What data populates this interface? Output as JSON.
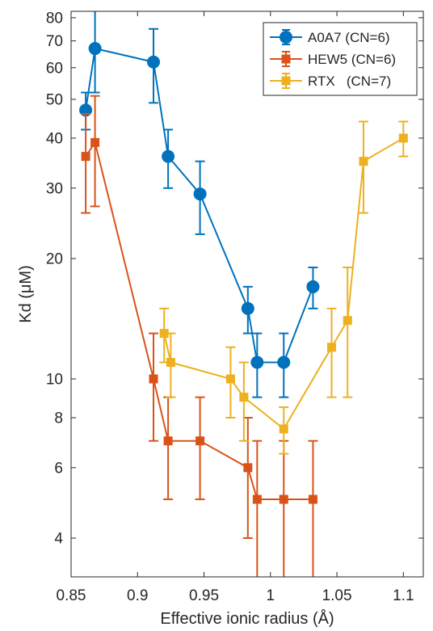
{
  "chart_data": {
    "type": "line",
    "xlabel": "Effective ionic radius (Å)",
    "ylabel": "Kd (μM)",
    "xlim": [
      0.85,
      1.115
    ],
    "ylim": [
      3.2,
      83
    ],
    "yscale": "log",
    "grid": false,
    "legend_position": "top-right",
    "x_ticks": [
      0.85,
      0.9,
      0.95,
      1.0,
      1.05,
      1.1
    ],
    "x_tick_labels": [
      "0.85",
      "0.9",
      "0.95",
      "1",
      "1.05",
      "1.1"
    ],
    "y_ticks": [
      4,
      6,
      8,
      10,
      20,
      30,
      40,
      50,
      60,
      70,
      80
    ],
    "y_tick_labels": [
      "4",
      "6",
      "8",
      "10",
      "20",
      "30",
      "40",
      "50",
      "60",
      "70",
      "80"
    ],
    "series": [
      {
        "name": "A0A7 (CN=6)",
        "color": "#0072bd",
        "marker": "circle",
        "points": [
          {
            "x": 0.861,
            "y": 47,
            "lo": 42,
            "hi": 52
          },
          {
            "x": 0.868,
            "y": 67,
            "lo": 52,
            "hi": 83
          },
          {
            "x": 0.912,
            "y": 62,
            "lo": 49,
            "hi": 75
          },
          {
            "x": 0.923,
            "y": 36,
            "lo": 30,
            "hi": 42
          },
          {
            "x": 0.947,
            "y": 29,
            "lo": 23,
            "hi": 35
          },
          {
            "x": 0.983,
            "y": 15,
            "lo": 13,
            "hi": 17
          },
          {
            "x": 0.99,
            "y": 11,
            "lo": 9,
            "hi": 13
          },
          {
            "x": 1.01,
            "y": 11,
            "lo": 9,
            "hi": 13
          },
          {
            "x": 1.032,
            "y": 17,
            "lo": 15,
            "hi": 19
          }
        ]
      },
      {
        "name": "HEW5 (CN=6)",
        "color": "#d95319",
        "marker": "square",
        "points": [
          {
            "x": 0.861,
            "y": 36,
            "lo": 26,
            "hi": 46
          },
          {
            "x": 0.868,
            "y": 39,
            "lo": 27,
            "hi": 51
          },
          {
            "x": 0.912,
            "y": 10,
            "lo": 7,
            "hi": 13
          },
          {
            "x": 0.923,
            "y": 7,
            "lo": 5,
            "hi": 9
          },
          {
            "x": 0.947,
            "y": 7,
            "lo": 5,
            "hi": 9
          },
          {
            "x": 0.983,
            "y": 6,
            "lo": 4,
            "hi": 8
          },
          {
            "x": 0.99,
            "y": 5,
            "lo": 3.2,
            "hi": 7
          },
          {
            "x": 1.01,
            "y": 5,
            "lo": 3.2,
            "hi": 7
          },
          {
            "x": 1.032,
            "y": 5,
            "lo": 3.2,
            "hi": 7
          }
        ]
      },
      {
        "name": "RTX   (CN=7)",
        "color": "#edb120",
        "marker": "square",
        "points": [
          {
            "x": 0.92,
            "y": 13,
            "lo": 11,
            "hi": 15
          },
          {
            "x": 0.925,
            "y": 11,
            "lo": 9,
            "hi": 13
          },
          {
            "x": 0.97,
            "y": 10,
            "lo": 8,
            "hi": 12
          },
          {
            "x": 0.98,
            "y": 9,
            "lo": 7,
            "hi": 11
          },
          {
            "x": 1.01,
            "y": 7.5,
            "lo": 6.5,
            "hi": 8.5
          },
          {
            "x": 1.046,
            "y": 12,
            "lo": 9,
            "hi": 15
          },
          {
            "x": 1.058,
            "y": 14,
            "lo": 9,
            "hi": 19
          },
          {
            "x": 1.07,
            "y": 35,
            "lo": 26,
            "hi": 44
          },
          {
            "x": 1.1,
            "y": 40,
            "lo": 36,
            "hi": 44
          }
        ]
      }
    ]
  }
}
